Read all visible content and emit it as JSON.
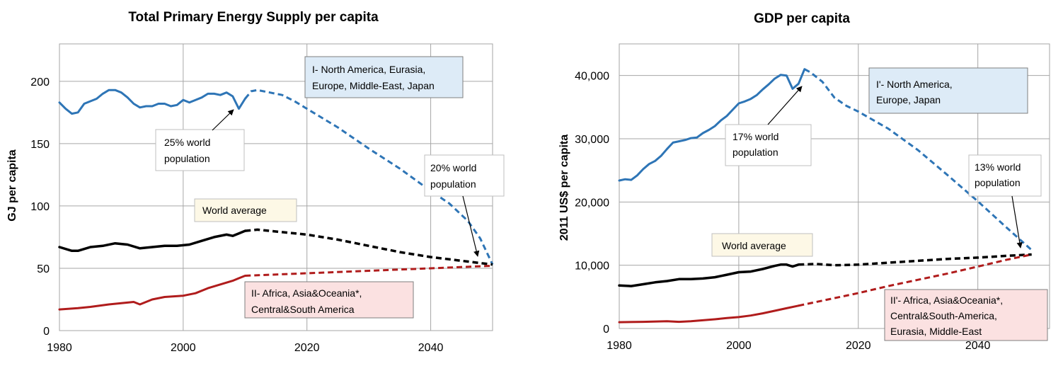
{
  "colors": {
    "blue": "#2e75b6",
    "black": "#000000",
    "red": "#b01c1c",
    "box_blue": "#ddebf7",
    "box_red": "#fbe1e1",
    "box_yellow": "#fdf8e6",
    "box_white": "#ffffff",
    "grid": "#a6a6a6"
  },
  "chart_data": [
    {
      "type": "line",
      "title": "Total Primary Energy Supply per capita",
      "xlabel": "",
      "ylabel": "GJ per capita",
      "xlim": [
        1980,
        2050
      ],
      "ylim": [
        0,
        230
      ],
      "x_ticks": [
        1980,
        2000,
        2020,
        2040
      ],
      "y_ticks": [
        0,
        50,
        100,
        150,
        200
      ],
      "x_tick_labels": [
        "1980",
        "2000",
        "2020",
        "2040"
      ],
      "y_tick_labels": [
        "0",
        "50",
        "100",
        "150",
        "200"
      ],
      "grid": true,
      "legend": "none",
      "series": [
        {
          "color": "#2e75b6",
          "style": "solid",
          "width": 3,
          "x": [
            1980,
            1981,
            1982,
            1983,
            1984,
            1985,
            1986,
            1987,
            1988,
            1989,
            1990,
            1991,
            1992,
            1993,
            1994,
            1995,
            1996,
            1997,
            1998,
            1999,
            2000,
            2001,
            2002,
            2003,
            2004,
            2005,
            2006,
            2007,
            2008,
            2009,
            2010
          ],
          "y": [
            183,
            178,
            174,
            175,
            182,
            184,
            186,
            190,
            193,
            193,
            191,
            187,
            182,
            179,
            180,
            180,
            182,
            182,
            180,
            181,
            185,
            183,
            185,
            187,
            190,
            190,
            189,
            191,
            188,
            178,
            186
          ]
        },
        {
          "color": "#2e75b6",
          "style": "dashed",
          "width": 3,
          "x": [
            2010,
            2011,
            2012,
            2014,
            2016,
            2018,
            2020,
            2025,
            2030,
            2035,
            2040,
            2043,
            2046,
            2048,
            2050
          ],
          "y": [
            186,
            192,
            193,
            191,
            189,
            184,
            178,
            163,
            146,
            130,
            112,
            102,
            88,
            74,
            53
          ]
        },
        {
          "color": "#000000",
          "style": "solid",
          "width": 3.5,
          "x": [
            1980,
            1982,
            1983,
            1985,
            1987,
            1989,
            1991,
            1993,
            1995,
            1997,
            1999,
            2001,
            2003,
            2005,
            2007,
            2008,
            2009,
            2010
          ],
          "y": [
            67,
            64,
            64,
            67,
            68,
            70,
            69,
            66,
            67,
            68,
            68,
            69,
            72,
            75,
            77,
            76,
            78,
            80
          ]
        },
        {
          "color": "#000000",
          "style": "dashed",
          "width": 3.5,
          "x": [
            2010,
            2012,
            2016,
            2020,
            2025,
            2030,
            2035,
            2040,
            2045,
            2050
          ],
          "y": [
            80,
            81,
            79,
            77,
            73,
            68,
            63,
            59,
            56,
            53
          ]
        },
        {
          "color": "#b01c1c",
          "style": "solid",
          "width": 3,
          "x": [
            1980,
            1983,
            1985,
            1988,
            1990,
            1992,
            1993,
            1995,
            1997,
            2000,
            2002,
            2004,
            2006,
            2008,
            2009,
            2010
          ],
          "y": [
            17,
            18,
            19,
            21,
            22,
            23,
            21,
            25,
            27,
            28,
            30,
            34,
            37,
            40,
            42,
            44
          ]
        },
        {
          "color": "#b01c1c",
          "style": "dashed",
          "width": 3,
          "x": [
            2010,
            2020,
            2030,
            2040,
            2050
          ],
          "y": [
            44,
            46,
            48,
            50,
            52
          ]
        }
      ],
      "annotations": {
        "region1": [
          "I- North America, Eurasia,",
          "Europe, Middle-East, Japan"
        ],
        "region2": [
          "II- Africa, Asia&Oceania*,",
          "Central&South America"
        ],
        "world": [
          "World average"
        ],
        "pop_now": [
          "25% world",
          "population"
        ],
        "pop_future": [
          "20% world",
          "population"
        ]
      }
    },
    {
      "type": "line",
      "title": "GDP per capita",
      "xlabel": "",
      "ylabel": "2011 US$ per capita",
      "xlim": [
        1980,
        2052
      ],
      "ylim": [
        0,
        45000
      ],
      "x_ticks": [
        1980,
        2000,
        2020,
        2040
      ],
      "y_ticks": [
        0,
        10000,
        20000,
        30000,
        40000
      ],
      "x_tick_labels": [
        "1980",
        "2000",
        "2020",
        "2040"
      ],
      "y_tick_labels": [
        "0",
        "10,000",
        "20,000",
        "30,000",
        "40,000"
      ],
      "grid": true,
      "legend": "none",
      "series": [
        {
          "color": "#2e75b6",
          "style": "solid",
          "width": 3,
          "x": [
            1980,
            1981,
            1982,
            1983,
            1984,
            1985,
            1986,
            1987,
            1988,
            1989,
            1990,
            1991,
            1992,
            1993,
            1994,
            1995,
            1996,
            1997,
            1998,
            1999,
            2000,
            2001,
            2002,
            2003,
            2004,
            2005,
            2006,
            2007,
            2008,
            2009,
            2010,
            2011
          ],
          "y": [
            23400,
            23600,
            23500,
            24200,
            25200,
            26000,
            26500,
            27300,
            28400,
            29400,
            29600,
            29800,
            30100,
            30200,
            30900,
            31400,
            32000,
            32900,
            33600,
            34600,
            35600,
            35900,
            36300,
            36900,
            37800,
            38600,
            39500,
            40100,
            40000,
            37900,
            38700,
            41000
          ]
        },
        {
          "color": "#2e75b6",
          "style": "dashed",
          "width": 3,
          "x": [
            2011,
            2012,
            2014,
            2016,
            2018,
            2020,
            2025,
            2030,
            2035,
            2040,
            2045,
            2049
          ],
          "y": [
            41000,
            40500,
            39000,
            36500,
            35200,
            34300,
            31600,
            28200,
            24200,
            20100,
            15800,
            12400
          ]
        },
        {
          "color": "#000000",
          "style": "solid",
          "width": 3.5,
          "x": [
            1980,
            1982,
            1984,
            1986,
            1988,
            1990,
            1992,
            1994,
            1996,
            1998,
            2000,
            2002,
            2004,
            2006,
            2007,
            2008,
            2009,
            2010
          ],
          "y": [
            6800,
            6700,
            7000,
            7300,
            7500,
            7800,
            7800,
            7900,
            8100,
            8500,
            8900,
            9000,
            9400,
            9900,
            10100,
            10100,
            9800,
            10100
          ]
        },
        {
          "color": "#000000",
          "style": "dashed",
          "width": 3.5,
          "x": [
            2010,
            2013,
            2016,
            2020,
            2025,
            2030,
            2035,
            2040,
            2045,
            2049
          ],
          "y": [
            10100,
            10200,
            10000,
            10100,
            10400,
            10700,
            11000,
            11200,
            11500,
            11700
          ]
        },
        {
          "color": "#b01c1c",
          "style": "solid",
          "width": 3,
          "x": [
            1980,
            1984,
            1988,
            1990,
            1992,
            1994,
            1996,
            1998,
            2000,
            2002,
            2004,
            2006,
            2008,
            2010
          ],
          "y": [
            1000,
            1050,
            1150,
            1050,
            1150,
            1300,
            1450,
            1650,
            1800,
            2050,
            2400,
            2800,
            3200,
            3600
          ]
        },
        {
          "color": "#b01c1c",
          "style": "dashed",
          "width": 3,
          "x": [
            2010,
            2015,
            2020,
            2025,
            2030,
            2035,
            2040,
            2045,
            2049
          ],
          "y": [
            3600,
            4600,
            5600,
            6700,
            7700,
            8700,
            9800,
            10900,
            11700
          ]
        }
      ],
      "annotations": {
        "region1": [
          "I'- North America,",
          "Europe, Japan"
        ],
        "region2": [
          "II'- Africa, Asia&Oceania*,",
          "Central&South-America,",
          "Eurasia, Middle-East"
        ],
        "world": [
          "World average"
        ],
        "pop_now": [
          "17% world",
          "population"
        ],
        "pop_future": [
          "13% world",
          "population"
        ]
      }
    }
  ]
}
